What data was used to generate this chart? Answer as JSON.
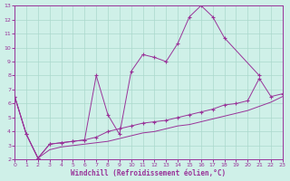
{
  "bg_color": "#cff0e8",
  "grid_color": "#aad8cc",
  "line_color": "#993399",
  "xlabel": "Windchill (Refroidissement éolien,°C)",
  "xlim": [
    0,
    23
  ],
  "ylim": [
    2,
    13
  ],
  "xticks": [
    0,
    1,
    2,
    3,
    4,
    5,
    6,
    7,
    8,
    9,
    10,
    11,
    12,
    13,
    14,
    15,
    16,
    17,
    18,
    19,
    20,
    21,
    22,
    23
  ],
  "yticks": [
    2,
    3,
    4,
    5,
    6,
    7,
    8,
    9,
    10,
    11,
    12,
    13
  ],
  "s1_x": [
    0,
    1,
    2,
    3,
    4,
    5,
    6,
    7,
    8,
    9,
    10,
    11,
    12,
    13,
    14,
    15,
    16,
    17,
    18,
    21
  ],
  "s1_y": [
    6.5,
    3.8,
    2.1,
    3.1,
    3.2,
    3.3,
    3.4,
    8.0,
    5.2,
    3.8,
    8.3,
    9.5,
    9.3,
    9.0,
    10.3,
    12.2,
    13.0,
    12.2,
    10.7,
    8.0
  ],
  "s2_x": [
    0,
    1,
    2,
    3,
    4,
    5,
    6,
    7,
    8,
    9,
    10,
    11,
    12,
    13,
    14,
    15,
    16,
    17,
    18,
    19,
    20,
    21,
    22,
    23
  ],
  "s2_y": [
    6.5,
    3.8,
    2.1,
    3.1,
    3.2,
    3.3,
    3.4,
    3.6,
    4.0,
    4.2,
    4.4,
    4.6,
    4.7,
    4.8,
    5.0,
    5.2,
    5.4,
    5.6,
    5.9,
    6.0,
    6.2,
    7.8,
    6.5,
    6.7
  ],
  "s3_x": [
    0,
    1,
    2,
    3,
    4,
    5,
    6,
    7,
    8,
    9,
    10,
    11,
    12,
    13,
    14,
    15,
    16,
    17,
    18,
    19,
    20,
    21,
    22,
    23
  ],
  "s3_y": [
    6.5,
    3.8,
    2.1,
    2.7,
    2.9,
    3.0,
    3.1,
    3.2,
    3.3,
    3.5,
    3.7,
    3.9,
    4.0,
    4.2,
    4.4,
    4.5,
    4.7,
    4.9,
    5.1,
    5.3,
    5.5,
    5.8,
    6.1,
    6.5
  ]
}
